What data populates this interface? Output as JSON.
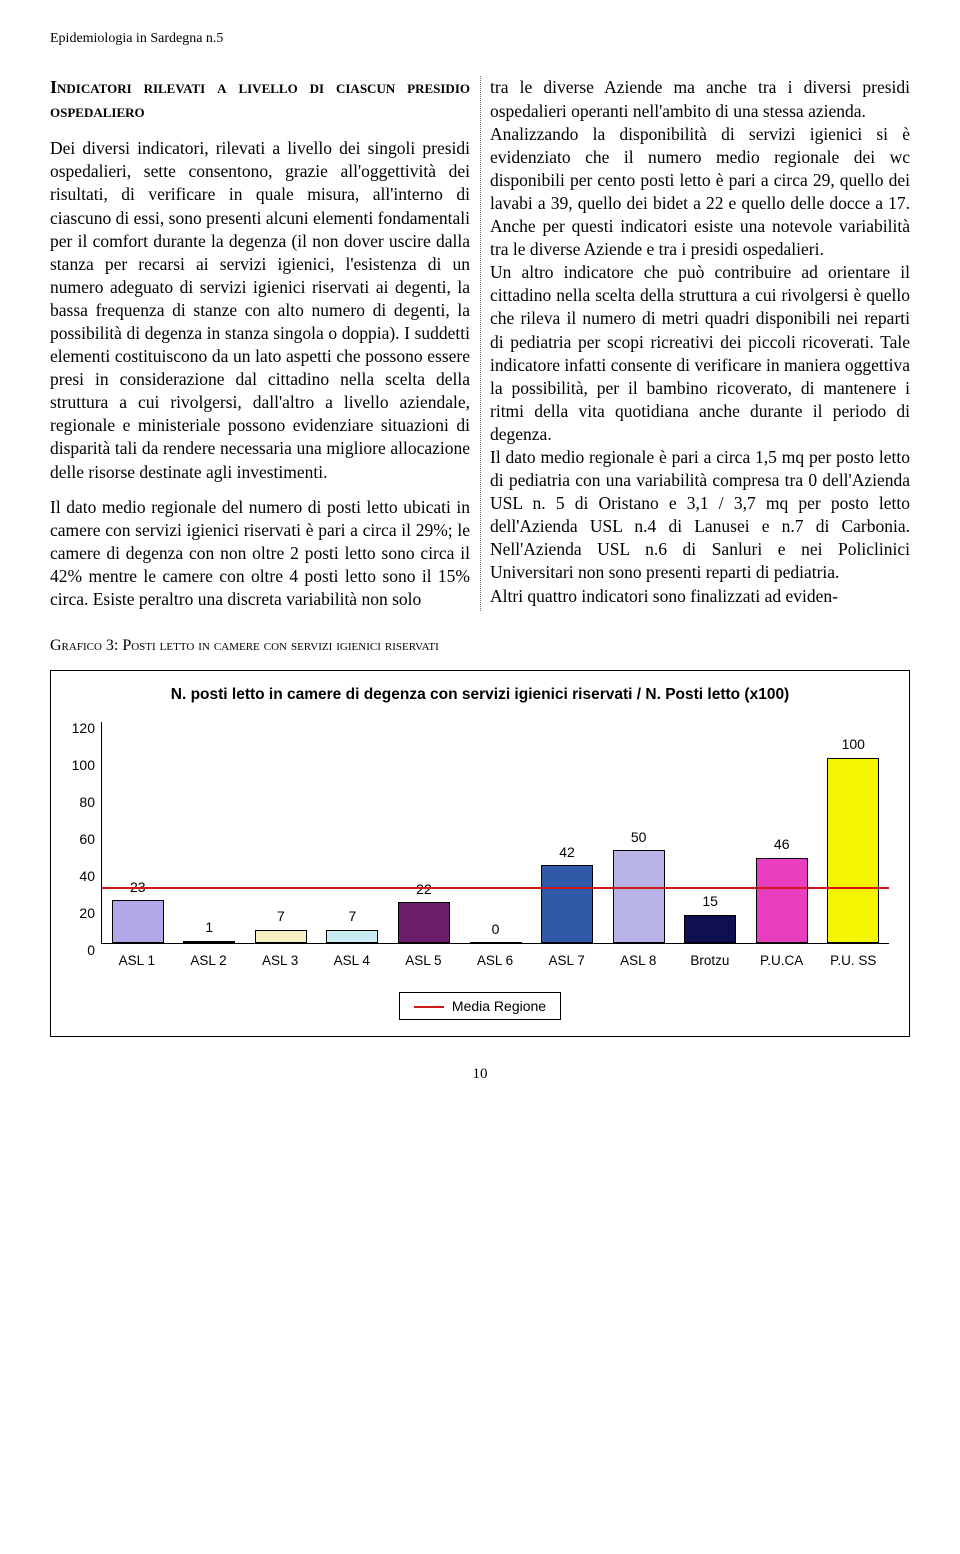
{
  "header": "Epidemiologia in Sardegna n.5",
  "section_title": "Indicatori rilevati a livello di ciascun presidio ospedaliero",
  "col_left_p1": "Dei diversi indicatori, rilevati a livello dei singoli presidi ospedalieri, sette consentono, grazie all'oggettività dei risultati, di verificare in quale misura, all'interno di ciascuno di essi, sono presenti alcuni elementi fondamentali per il comfort durante la degenza (il non dover uscire dalla stanza per recarsi ai servizi igienici, l'esistenza di un numero adeguato di servizi igienici riservati ai degenti, la bassa frequenza di stanze con alto numero di degenti, la possibilità di degenza in stanza singola o doppia). I suddetti elementi costituiscono da un lato aspetti che possono essere presi in considerazione dal cittadino nella scelta della struttura a cui rivolgersi, dall'altro a livello aziendale, regionale e ministeriale possono evidenziare situazioni di disparità tali da rendere necessaria una migliore allocazione delle risorse destinate agli investimenti.",
  "col_left_p2": "Il dato medio regionale del numero di posti letto ubicati in camere con servizi igienici riservati è pari a circa il 29%; le camere di degenza con non oltre 2 posti letto sono circa il 42% mentre le camere con oltre 4 posti letto sono il 15% circa. Esiste peraltro una discreta variabilità non solo",
  "col_right_p1": "tra le diverse Aziende ma anche tra i diversi presidi ospedalieri operanti nell'ambito di una stessa azienda.",
  "col_right_p2": "Analizzando la disponibilità di servizi igienici si è evidenziato che il numero medio regionale dei wc disponibili per cento posti letto è pari a circa 29, quello dei lavabi a 39, quello dei bidet a 22 e quello delle docce a 17. Anche per questi indicatori esiste una notevole variabilità tra le diverse Aziende e tra i presidi ospedalieri.",
  "col_right_p3": "Un altro indicatore che può contribuire ad orientare il cittadino nella scelta della struttura a cui rivolgersi è quello che rileva il numero di metri quadri disponibili nei reparti di pediatria per scopi ricreativi dei piccoli ricoverati. Tale indicatore infatti consente di verificare in maniera oggettiva la possibilità, per il bambino ricoverato, di mantenere i ritmi della vita quotidiana anche durante il periodo di degenza.",
  "col_right_p4": "Il dato medio regionale è pari a circa 1,5 mq per posto letto di pediatria con una variabilità compresa tra 0 dell'Azienda USL n. 5 di Oristano e 3,1 / 3,7 mq per posto letto dell'Azienda USL n.4 di Lanusei e n.7 di Carbonia. Nell'Azienda USL n.6 di Sanluri e nei Policlinici Universitari non sono presenti reparti di pediatria.",
  "col_right_p5": "Altri quattro indicatori sono finalizzati ad eviden-",
  "chart_title": "Grafico 3: Posti letto in camere con servizi igienici riservati",
  "chart": {
    "type": "bar",
    "heading": "N. posti letto in camere di degenza con servizi igienici riservati / N. Posti letto (x100)",
    "categories": [
      "ASL 1",
      "ASL 2",
      "ASL 3",
      "ASL 4",
      "ASL 5",
      "ASL 6",
      "ASL 7",
      "ASL 8",
      "Brotzu",
      "P.U.CA",
      "P.U. SS"
    ],
    "values": [
      23,
      1,
      7,
      7,
      22,
      0,
      42,
      50,
      15,
      46,
      100
    ],
    "bar_colors": [
      "#b0a8e8",
      "#d2597a",
      "#f5f0c2",
      "#c8ecf2",
      "#6a1e6a",
      "#d6ced6",
      "#2f5aa8",
      "#b8b4e8",
      "#101050",
      "#e83ec0",
      "#f5f500"
    ],
    "ylim": [
      0,
      120
    ],
    "ytick_step": 20,
    "reference_line": {
      "value": 29,
      "color": "#d01818",
      "label": "Media Regione"
    },
    "background_color": "#ffffff",
    "border_color": "#000000",
    "label_fontsize": 14
  },
  "page_number": "10"
}
